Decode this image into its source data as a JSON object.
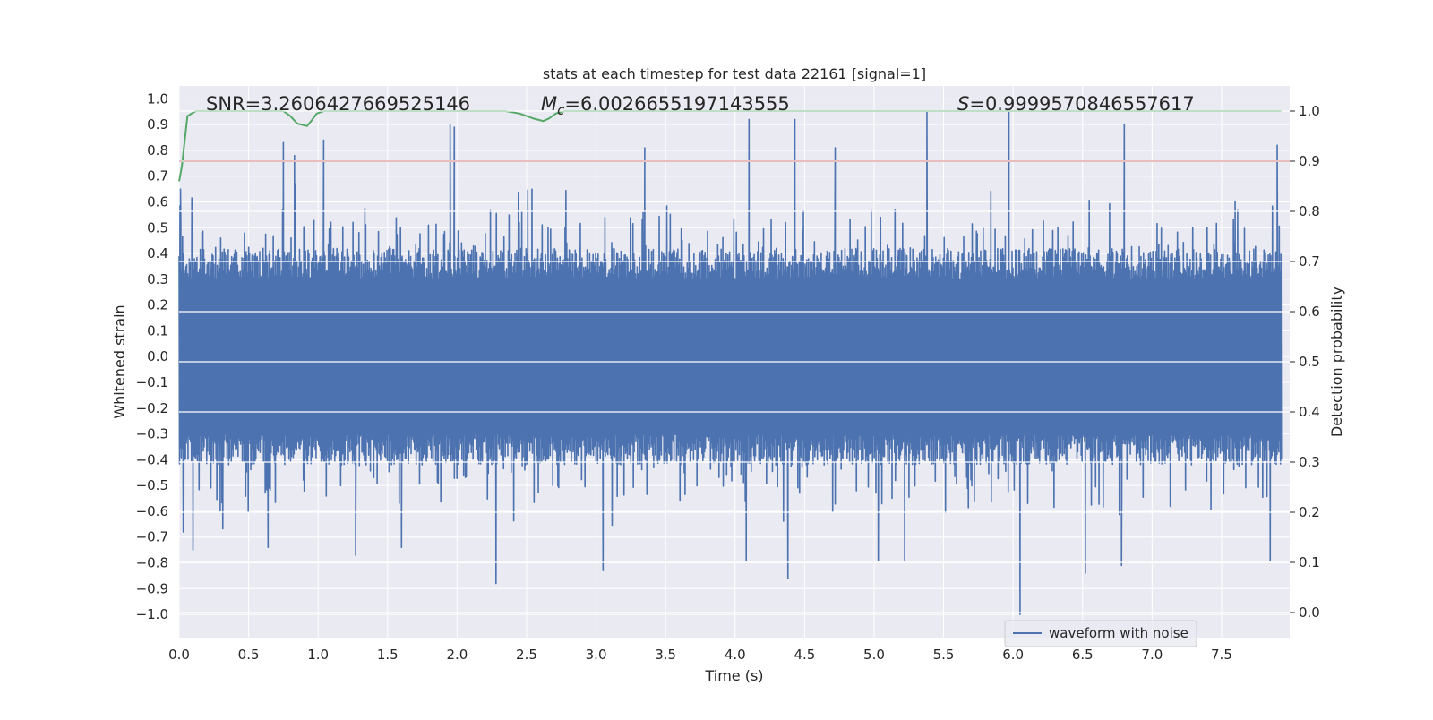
{
  "chart_data": {
    "type": "line",
    "title": "stats at each timestep for test data 22161 [signal=1]",
    "xlabel": "Time (s)",
    "ylabel_left": "Whitened strain",
    "ylabel_right": "Detection probability",
    "xlim": [
      0.0,
      7.99
    ],
    "ylim_left": [
      -1.09,
      1.05
    ],
    "ylim_right": [
      -0.05,
      1.05
    ],
    "x_ticks": [
      "0.0",
      "0.5",
      "1.0",
      "1.5",
      "2.0",
      "2.5",
      "3.0",
      "3.5",
      "4.0",
      "4.5",
      "5.0",
      "5.5",
      "6.0",
      "6.5",
      "7.0",
      "7.5"
    ],
    "y_ticks_left": [
      "1.0",
      "0.9",
      "0.8",
      "0.7",
      "0.6",
      "0.5",
      "0.4",
      "0.3",
      "0.2",
      "0.1",
      "0.0",
      "-0.1",
      "-0.2",
      "-0.3",
      "-0.4",
      "-0.5",
      "-0.6",
      "-0.7",
      "-0.8",
      "-0.9",
      "-1.0"
    ],
    "y_ticks_right": [
      "1.0",
      "0.9",
      "0.8",
      "0.7",
      "0.6",
      "0.5",
      "0.4",
      "0.3",
      "0.2",
      "0.1",
      "0.0"
    ],
    "annotations": {
      "snr": "SNR=3.2606427669525146",
      "mc_prefix": "M",
      "mc_sub": "c",
      "mc_value": "=6.0026655197143555",
      "s_prefix": "S",
      "s_value": "=0.9999570846557617"
    },
    "legend": {
      "label": "waveform with noise",
      "position": "lower-right"
    },
    "grid": true,
    "colors": {
      "waveform": "#4c72b0",
      "probability": "#55a868",
      "threshold": "#c44e52",
      "background": "#eaeaf2",
      "grid": "#ffffff"
    },
    "series": [
      {
        "name": "waveform with noise",
        "axis": "left",
        "envelope": "dense noise, typical amplitude about ±0.35 with spikes",
        "peaks_positive": [
          {
            "x": 0.01,
            "y": 0.65
          },
          {
            "x": 0.75,
            "y": 0.83
          },
          {
            "x": 0.83,
            "y": 0.78
          },
          {
            "x": 1.04,
            "y": 0.84
          },
          {
            "x": 1.95,
            "y": 0.9
          },
          {
            "x": 1.98,
            "y": 0.89
          },
          {
            "x": 3.35,
            "y": 0.81
          },
          {
            "x": 4.1,
            "y": 0.92
          },
          {
            "x": 4.43,
            "y": 0.92
          },
          {
            "x": 4.72,
            "y": 0.81
          },
          {
            "x": 5.38,
            "y": 0.95
          },
          {
            "x": 5.97,
            "y": 0.95
          },
          {
            "x": 6.8,
            "y": 0.9
          },
          {
            "x": 7.9,
            "y": 0.82
          }
        ],
        "peaks_negative": [
          {
            "x": 0.03,
            "y": -0.68
          },
          {
            "x": 0.1,
            "y": -0.75
          },
          {
            "x": 0.64,
            "y": -0.74
          },
          {
            "x": 1.27,
            "y": -0.77
          },
          {
            "x": 1.6,
            "y": -0.74
          },
          {
            "x": 2.28,
            "y": -0.88
          },
          {
            "x": 3.05,
            "y": -0.83
          },
          {
            "x": 4.08,
            "y": -0.79
          },
          {
            "x": 4.38,
            "y": -0.86
          },
          {
            "x": 5.03,
            "y": -0.79
          },
          {
            "x": 5.22,
            "y": -0.79
          },
          {
            "x": 6.05,
            "y": -1.0
          },
          {
            "x": 6.52,
            "y": -0.84
          },
          {
            "x": 6.78,
            "y": -0.81
          },
          {
            "x": 7.85,
            "y": -0.79
          }
        ]
      },
      {
        "name": "detection probability",
        "axis": "right",
        "points": [
          [
            0.0,
            0.86
          ],
          [
            0.02,
            0.89
          ],
          [
            0.06,
            0.99
          ],
          [
            0.12,
            1.0
          ],
          [
            0.75,
            1.0
          ],
          [
            0.8,
            0.99
          ],
          [
            0.85,
            0.975
          ],
          [
            0.92,
            0.97
          ],
          [
            0.95,
            0.98
          ],
          [
            0.99,
            0.995
          ],
          [
            1.04,
            1.0
          ],
          [
            2.35,
            1.0
          ],
          [
            2.45,
            0.995
          ],
          [
            2.5,
            0.99
          ],
          [
            2.55,
            0.985
          ],
          [
            2.62,
            0.98
          ],
          [
            2.66,
            0.985
          ],
          [
            2.71,
            0.995
          ],
          [
            2.77,
            1.0
          ],
          [
            7.93,
            1.0
          ]
        ]
      },
      {
        "name": "threshold",
        "axis": "right",
        "points": [
          [
            0.0,
            0.9
          ],
          [
            7.99,
            0.9
          ]
        ]
      }
    ]
  }
}
